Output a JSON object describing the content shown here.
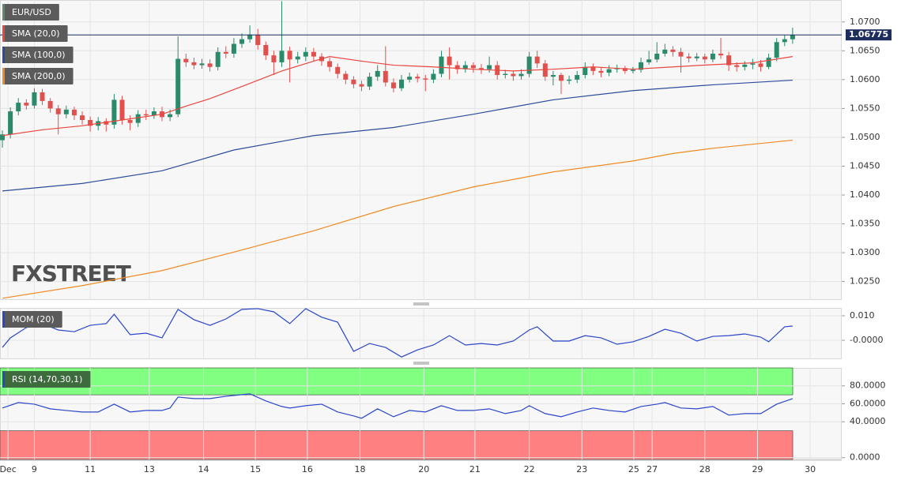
{
  "chart_data": [
    {
      "type": "candlestick",
      "title": "EUR/USD",
      "color_up": "#2a8a6a",
      "color_down": "#e2504e",
      "legend_color": "#5a8a6a",
      "watermark": "FXSTREET",
      "last_price": 1.06775,
      "last_price_color": "#1c2d5e",
      "grid": true,
      "xlim": [
        -0.3,
        105.15
      ],
      "xticks": [
        {
          "value": 0.7,
          "label": "Dec"
        },
        {
          "value": 4,
          "label": "9"
        },
        {
          "value": 11,
          "label": "11"
        },
        {
          "value": 18.4,
          "label": "13"
        },
        {
          "value": 25.2,
          "label": "14"
        },
        {
          "value": 31.7,
          "label": "15"
        },
        {
          "value": 38.2,
          "label": "16"
        },
        {
          "value": 44.8,
          "label": "18"
        },
        {
          "value": 52.8,
          "label": "20"
        },
        {
          "value": 59.2,
          "label": "21"
        },
        {
          "value": 66,
          "label": "22"
        },
        {
          "value": 72.6,
          "label": "23"
        },
        {
          "value": 79.1,
          "label": "25"
        },
        {
          "value": 81.4,
          "label": "27"
        },
        {
          "value": 88,
          "label": "28"
        },
        {
          "value": 94.6,
          "label": "29"
        },
        {
          "value": 101.2,
          "label": "30"
        }
      ],
      "ylim": [
        1.0218,
        1.0738
      ],
      "yticks": [
        {
          "value": 1.025,
          "label": "1.0250"
        },
        {
          "value": 1.03,
          "label": "1.0300"
        },
        {
          "value": 1.035,
          "label": "1.0350"
        },
        {
          "value": 1.04,
          "label": "1.0400"
        },
        {
          "value": 1.045,
          "label": "1.0450"
        },
        {
          "value": 1.05,
          "label": "1.0500"
        },
        {
          "value": 1.055,
          "label": "1.0550"
        },
        {
          "value": 1.06,
          "label": "1.0600"
        },
        {
          "value": 1.065,
          "label": "1.0650"
        },
        {
          "value": 1.07,
          "label": "1.0700"
        }
      ],
      "open": [
        1.0495,
        1.0505,
        1.0545,
        1.056,
        1.0555,
        1.0578,
        1.0563,
        1.055,
        1.054,
        1.0548,
        1.0538,
        1.053,
        1.052,
        1.0528,
        1.0522,
        1.0565,
        1.053,
        1.0525,
        1.054,
        1.0538,
        1.0545,
        1.0535,
        1.054,
        1.0636,
        1.063,
        1.0625,
        1.0628,
        1.0622,
        1.0648,
        1.0645,
        1.0662,
        1.067,
        1.0678,
        1.066,
        1.0642,
        1.063,
        1.065,
        1.0635,
        1.064,
        1.0648,
        1.064,
        1.0632,
        1.0622,
        1.061,
        1.06,
        1.0592,
        1.0588,
        1.0605,
        1.0615,
        1.0595,
        1.0585,
        1.06,
        1.0605,
        1.0602,
        1.06,
        1.061,
        1.064,
        1.0625,
        1.0618,
        1.0625,
        1.062,
        1.0618,
        1.0625,
        1.0608,
        1.061,
        1.0606,
        1.061,
        1.064,
        1.0628,
        1.0605,
        1.0608,
        1.0598,
        1.06,
        1.0608,
        1.0622,
        1.0615,
        1.0612,
        1.0618,
        1.062,
        1.0615,
        1.0617,
        1.063,
        1.0635,
        1.0645,
        1.0652,
        1.0648,
        1.064,
        1.0637,
        1.064,
        1.0635,
        1.0645,
        1.0642,
        1.0625,
        1.0622,
        1.0626,
        1.0628,
        1.0622,
        1.0638,
        1.0665,
        1.067
      ],
      "high": [
        1.0512,
        1.0552,
        1.0568,
        1.0566,
        1.0585,
        1.0584,
        1.0568,
        1.0556,
        1.0555,
        1.0553,
        1.0545,
        1.0536,
        1.0535,
        1.0533,
        1.0575,
        1.0572,
        1.0538,
        1.0547,
        1.0548,
        1.0552,
        1.0553,
        1.0548,
        1.0675,
        1.0645,
        1.0638,
        1.0636,
        1.0635,
        1.0656,
        1.0658,
        1.0672,
        1.068,
        1.0694,
        1.0688,
        1.0666,
        1.065,
        1.0736,
        1.0657,
        1.0648,
        1.0656,
        1.0655,
        1.0646,
        1.0638,
        1.0628,
        1.0615,
        1.0606,
        1.0598,
        1.0612,
        1.0625,
        1.0658,
        1.0602,
        1.0608,
        1.0612,
        1.061,
        1.0608,
        1.0618,
        1.065,
        1.0656,
        1.0632,
        1.0632,
        1.063,
        1.0627,
        1.064,
        1.0632,
        1.0617,
        1.0615,
        1.0618,
        1.0648,
        1.065,
        1.0634,
        1.0615,
        1.0612,
        1.0607,
        1.0615,
        1.063,
        1.0628,
        1.062,
        1.0625,
        1.0626,
        1.0624,
        1.0622,
        1.0638,
        1.065,
        1.0665,
        1.0662,
        1.0658,
        1.0655,
        1.0646,
        1.0646,
        1.0645,
        1.0652,
        1.0672,
        1.0648,
        1.063,
        1.0632,
        1.0636,
        1.0634,
        1.0645,
        1.0672,
        1.0678,
        1.069
      ],
      "low": [
        1.0482,
        1.0498,
        1.0538,
        1.0548,
        1.055,
        1.0556,
        1.0543,
        1.0505,
        1.0533,
        1.053,
        1.0522,
        1.051,
        1.0512,
        1.051,
        1.0515,
        1.0522,
        1.0512,
        1.0518,
        1.053,
        1.0532,
        1.0528,
        1.0528,
        1.0535,
        1.0622,
        1.0618,
        1.0619,
        1.0614,
        1.0616,
        1.0637,
        1.0638,
        1.0655,
        1.0664,
        1.0652,
        1.0634,
        1.0608,
        1.0622,
        1.0595,
        1.0628,
        1.0632,
        1.0632,
        1.0624,
        1.0614,
        1.0602,
        1.0592,
        1.0585,
        1.058,
        1.0582,
        1.0598,
        1.0588,
        1.0578,
        1.058,
        1.0595,
        1.0595,
        1.058,
        1.0594,
        1.0604,
        1.06,
        1.061,
        1.0612,
        1.0612,
        1.061,
        1.0612,
        1.06,
        1.0602,
        1.0598,
        1.06,
        1.0604,
        1.062,
        1.0598,
        1.059,
        1.0575,
        1.0592,
        1.0594,
        1.0602,
        1.0608,
        1.0604,
        1.0606,
        1.0612,
        1.061,
        1.0611,
        1.0612,
        1.0626,
        1.063,
        1.064,
        1.064,
        1.0612,
        1.063,
        1.0632,
        1.0628,
        1.063,
        1.0636,
        1.0615,
        1.0614,
        1.0616,
        1.0618,
        1.0614,
        1.0618,
        1.0632,
        1.0658,
        1.0662
      ],
      "close": [
        1.0505,
        1.0545,
        1.056,
        1.0555,
        1.0578,
        1.0563,
        1.055,
        1.054,
        1.0548,
        1.0538,
        1.053,
        1.052,
        1.0528,
        1.0522,
        1.0565,
        1.053,
        1.0525,
        1.054,
        1.0538,
        1.0545,
        1.0535,
        1.054,
        1.0636,
        1.063,
        1.0625,
        1.0628,
        1.0622,
        1.0648,
        1.0645,
        1.0662,
        1.067,
        1.0678,
        1.066,
        1.0642,
        1.063,
        1.065,
        1.0635,
        1.064,
        1.0648,
        1.064,
        1.0632,
        1.0622,
        1.061,
        1.06,
        1.0592,
        1.0588,
        1.0605,
        1.0615,
        1.0595,
        1.0585,
        1.06,
        1.0605,
        1.0602,
        1.06,
        1.061,
        1.064,
        1.0625,
        1.0618,
        1.0625,
        1.062,
        1.0618,
        1.0625,
        1.0608,
        1.061,
        1.0606,
        1.061,
        1.064,
        1.0628,
        1.0605,
        1.0608,
        1.0598,
        1.06,
        1.0608,
        1.0622,
        1.0615,
        1.0612,
        1.0618,
        1.062,
        1.0615,
        1.0617,
        1.063,
        1.0635,
        1.0645,
        1.0652,
        1.0648,
        1.064,
        1.0637,
        1.064,
        1.0635,
        1.0645,
        1.0642,
        1.0625,
        1.0622,
        1.0626,
        1.0628,
        1.0622,
        1.0638,
        1.0665,
        1.067,
        1.06775
      ],
      "series": [
        {
          "name": "SMA (20,0)",
          "color": "#e8473f",
          "x": [
            0,
            5,
            10,
            15,
            20,
            23,
            26,
            30,
            35,
            39,
            41,
            45,
            49,
            54,
            59,
            64,
            69,
            74,
            79,
            84,
            89,
            94,
            99
          ],
          "values": [
            1.0503,
            1.0513,
            1.052,
            1.053,
            1.054,
            1.0554,
            1.0567,
            1.0588,
            1.0615,
            1.0632,
            1.064,
            1.0632,
            1.0625,
            1.0622,
            1.0618,
            1.0615,
            1.0618,
            1.0622,
            1.0618,
            1.0622,
            1.0626,
            1.0629,
            1.064
          ]
        },
        {
          "name": "SMA (100,0)",
          "color": "#2b4c9b",
          "x": [
            0,
            10,
            20,
            29,
            39,
            49,
            59,
            69,
            79,
            89,
            99
          ],
          "values": [
            1.0407,
            1.042,
            1.0442,
            1.0478,
            1.0503,
            1.0517,
            1.054,
            1.0565,
            1.0581,
            1.0591,
            1.0599
          ]
        },
        {
          "name": "SMA (200,0)",
          "color": "#f08a24",
          "x": [
            0,
            10,
            20,
            29,
            39,
            49,
            59,
            69,
            79,
            84,
            89,
            99
          ],
          "values": [
            1.0221,
            1.0243,
            1.0269,
            1.0301,
            1.0338,
            1.038,
            1.0414,
            1.044,
            1.0459,
            1.0472,
            1.0481,
            1.0495
          ]
        }
      ]
    },
    {
      "type": "line",
      "grid": true,
      "ylim": [
        -0.0077,
        0.0132
      ],
      "yticks": [
        {
          "value": 0,
          "label": "-0.0000"
        },
        {
          "value": 0.01,
          "label": "0.010"
        }
      ],
      "series": [
        {
          "name": "MOM (20)",
          "color": "#2b46c8",
          "x": [
            0,
            1,
            3,
            5,
            7,
            9,
            11,
            13,
            14,
            16,
            18,
            20,
            22,
            24,
            26,
            28,
            30,
            32,
            34,
            36,
            38,
            40,
            42,
            44,
            46,
            48,
            50,
            52,
            54,
            56,
            58,
            60,
            62,
            64,
            66,
            67,
            69,
            71,
            73,
            75,
            77,
            79,
            81,
            83,
            85,
            87,
            89,
            91,
            93,
            95,
            96,
            98,
            99
          ],
          "values": [
            -0.0029,
            0.001,
            0.0052,
            0.0068,
            0.0042,
            0.0035,
            0.0061,
            0.0068,
            0.0106,
            0.0023,
            0.0029,
            0.001,
            0.0126,
            0.0084,
            0.0061,
            0.0087,
            0.0126,
            0.0129,
            0.0116,
            0.0068,
            0.0129,
            0.0094,
            0.0074,
            -0.0045,
            -0.0013,
            -0.0029,
            -0.0068,
            -0.0039,
            -0.0019,
            0.0019,
            -0.0019,
            -0.0013,
            -0.0019,
            -0.0003,
            0.0042,
            0.0055,
            -0.0003,
            -0.0003,
            0.0019,
            0.001,
            -0.0016,
            -0.0006,
            0.0016,
            0.0045,
            0.0029,
            -0.0003,
            0.0016,
            0.0019,
            0.0026,
            0.0013,
            -0.0006,
            0.0055,
            0.0058
          ]
        }
      ]
    },
    {
      "type": "line",
      "grid": true,
      "ylim": [
        -2,
        100
      ],
      "overbought": 70,
      "oversold": 30,
      "overbought_color": "#80ff80",
      "oversold_color": "#ff8080",
      "yticks": [
        {
          "value": 0,
          "label": "0.0000"
        },
        {
          "value": 40,
          "label": "40.0000"
        },
        {
          "value": 60,
          "label": "60.0000"
        },
        {
          "value": 80,
          "label": "80.0000"
        }
      ],
      "series": [
        {
          "name": "RSI (14,70,30,1)",
          "color": "#2b46c8",
          "legend_bg": "#3d6b3d",
          "x": [
            0,
            2,
            4,
            6,
            8,
            10,
            12,
            14,
            16,
            18,
            20,
            21,
            22,
            24,
            26,
            28,
            30,
            31,
            33,
            35,
            36,
            38,
            40,
            42,
            44,
            45,
            47,
            49,
            51,
            53,
            55,
            57,
            59,
            61,
            63,
            65,
            66,
            68,
            70,
            72,
            74,
            76,
            78,
            80,
            82,
            83,
            85,
            87,
            89,
            91,
            93,
            95,
            97,
            99
          ],
          "values": [
            55.3,
            61.4,
            59.6,
            54.4,
            52.6,
            50.9,
            50.9,
            59.6,
            50.9,
            52.6,
            52.6,
            55.3,
            67.5,
            65.8,
            65.8,
            68.4,
            70.2,
            71.1,
            63.2,
            57.0,
            55.3,
            57.9,
            59.6,
            50.9,
            46.5,
            43.9,
            54.4,
            45.6,
            52.6,
            50.9,
            57.9,
            52.6,
            52.6,
            54.4,
            49.1,
            52.6,
            57.9,
            49.1,
            45.6,
            50.9,
            55.3,
            52.6,
            50.9,
            57.0,
            59.6,
            61.4,
            55.3,
            54.4,
            57.0,
            47.4,
            49.1,
            49.1,
            59.6,
            65.8
          ]
        }
      ]
    }
  ]
}
